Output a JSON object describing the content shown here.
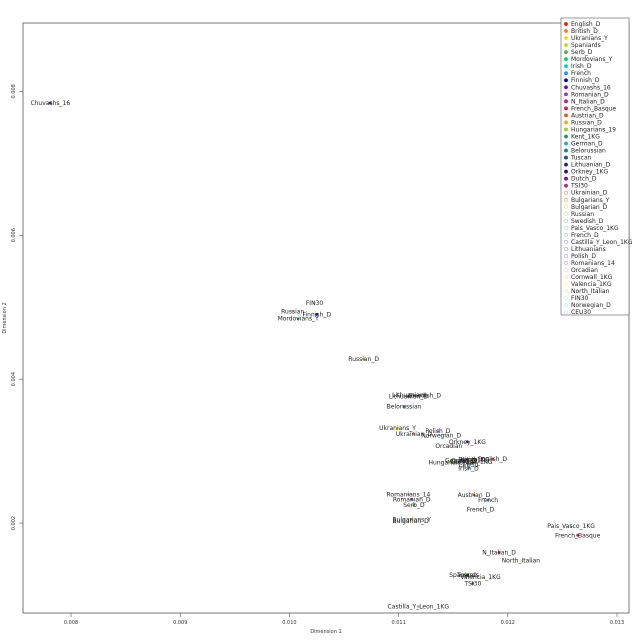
{
  "chart_data": {
    "type": "scatter",
    "title": "",
    "xlabel": "Dimension 1",
    "ylabel": "Dimension 2",
    "xlim": [
      0.00756,
      0.01311
    ],
    "ylim": [
      0.00075,
      0.00895
    ],
    "x_ticks": [
      "0.008",
      "0.009",
      "0.010",
      "0.011",
      "0.012",
      "0.013"
    ],
    "y_ticks": [
      "0.002",
      "0.004",
      "0.006",
      "0.008"
    ],
    "x_tick_values": [
      0.008,
      0.009,
      0.01,
      0.011,
      0.012,
      0.013
    ],
    "y_tick_values": [
      0.002,
      0.004,
      0.006,
      0.008
    ],
    "legend_position": "top-right",
    "series": [
      {
        "name": "English_D",
        "color": "#e41a1c",
        "x": 0.01186,
        "y": 0.00289
      },
      {
        "name": "British_D",
        "color": "#ff7f00",
        "x": 0.01167,
        "y": 0.00288
      },
      {
        "name": "Ukranians_Y",
        "color": "#ffd700",
        "x": 0.01099,
        "y": 0.00332
      },
      {
        "name": "Spaniards",
        "color": "#b2df1a",
        "x": 0.0116,
        "y": 0.00128
      },
      {
        "name": "Serb_D",
        "color": "#4daf4a",
        "x": 0.01114,
        "y": 0.00225
      },
      {
        "name": "Mordovians_Y",
        "color": "#00cc66",
        "x": 0.01008,
        "y": 0.00484
      },
      {
        "name": "Irish_D",
        "color": "#00ced1",
        "x": 0.01164,
        "y": 0.00276
      },
      {
        "name": "French",
        "color": "#1e90ff",
        "x": 0.01182,
        "y": 0.00232
      },
      {
        "name": "Finnish_D",
        "color": "#0000cd",
        "x": 0.01025,
        "y": 0.0049
      },
      {
        "name": "Chuvashs_16",
        "color": "#6a0dad",
        "x": 0.00781,
        "y": 0.00784
      },
      {
        "name": "Romanian_D",
        "color": "#9932cc",
        "x": 0.01112,
        "y": 0.00233
      },
      {
        "name": "N_Italian_D",
        "color": "#c71585",
        "x": 0.01192,
        "y": 0.00159
      },
      {
        "name": "French_Basque",
        "color": "#dc143c",
        "x": 0.01264,
        "y": 0.00183
      },
      {
        "name": "Austrian_D",
        "color": "#e6550d",
        "x": 0.01169,
        "y": 0.00239
      },
      {
        "name": "Russian_D",
        "color": "#e8b000",
        "x": 0.01068,
        "y": 0.00428
      },
      {
        "name": "Hungarians_19",
        "color": "#9acd32",
        "x": 0.01148,
        "y": 0.00284
      },
      {
        "name": "Kent_1KG",
        "color": "#2e8b57",
        "x": 0.0117,
        "y": 0.00288
      },
      {
        "name": "German_D",
        "color": "#20b2aa",
        "x": 0.01157,
        "y": 0.00287
      },
      {
        "name": "Belorussian",
        "color": "#008b8b",
        "x": 0.01105,
        "y": 0.00362
      },
      {
        "name": "Tuscan",
        "color": "#1f4e79",
        "x": 0.01163,
        "y": 0.00128
      },
      {
        "name": "Lithuanian_D",
        "color": "#1a237e",
        "x": 0.01109,
        "y": 0.00376
      },
      {
        "name": "Orkney_1KG",
        "color": "#4b0082",
        "x": 0.01163,
        "y": 0.00313
      },
      {
        "name": "Dutch_D",
        "color": "#8b008b",
        "x": 0.0116,
        "y": 0.00286
      },
      {
        "name": "TSI30",
        "color": "#b03060",
        "x": 0.01168,
        "y": 0.00116
      },
      {
        "name": "Ukrainian_D",
        "color": "#f08080",
        "x": 0.01114,
        "y": 0.00324
      },
      {
        "name": "Bulgarians_Y",
        "color": "#f4a460",
        "x": 0.01112,
        "y": 0.00205
      },
      {
        "name": "Bulgarian_D",
        "color": "#eedd82",
        "x": 0.01111,
        "y": 0.00203
      },
      {
        "name": "Russian",
        "color": "#c5e1a5",
        "x": 0.01003,
        "y": 0.00494
      },
      {
        "name": "Swedish_D",
        "color": "#a5d6a7",
        "x": 0.01124,
        "y": 0.00377
      },
      {
        "name": "Pais_Vasco_1KG",
        "color": "#b2dfdb",
        "x": 0.01258,
        "y": 0.00196
      },
      {
        "name": "French_D",
        "color": "#a8c8e8",
        "x": 0.01175,
        "y": 0.00219
      },
      {
        "name": "Castilla_Y_Leon_1KG",
        "color": "#9fa8da",
        "x": 0.01118,
        "y": 0.00084
      },
      {
        "name": "Lithuanians",
        "color": "#b39ddb",
        "x": 0.0111,
        "y": 0.00378
      },
      {
        "name": "Polish_D",
        "color": "#ce93d8",
        "x": 0.01136,
        "y": 0.00328
      },
      {
        "name": "Romanians_14",
        "color": "#f48fb1",
        "x": 0.01109,
        "y": 0.0024
      },
      {
        "name": "Orcadian",
        "color": "#ffcdd2",
        "x": 0.01146,
        "y": 0.00307
      },
      {
        "name": "Cornwall_1KG",
        "color": "#ffe0b2",
        "x": 0.01167,
        "y": 0.00285
      },
      {
        "name": "Valencia_1KG",
        "color": "#fff59d",
        "x": 0.01175,
        "y": 0.00125
      },
      {
        "name": "North_Italian",
        "color": "#e6ee9c",
        "x": 0.01212,
        "y": 0.00148
      },
      {
        "name": "FIN30",
        "color": "#c8e6c9",
        "x": 0.01023,
        "y": 0.00506
      },
      {
        "name": "Norwegian_D",
        "color": "#b2ebf2",
        "x": 0.01139,
        "y": 0.00322
      },
      {
        "name": "CEU30",
        "color": "#bbdefb",
        "x": 0.01164,
        "y": 0.00281
      }
    ]
  }
}
